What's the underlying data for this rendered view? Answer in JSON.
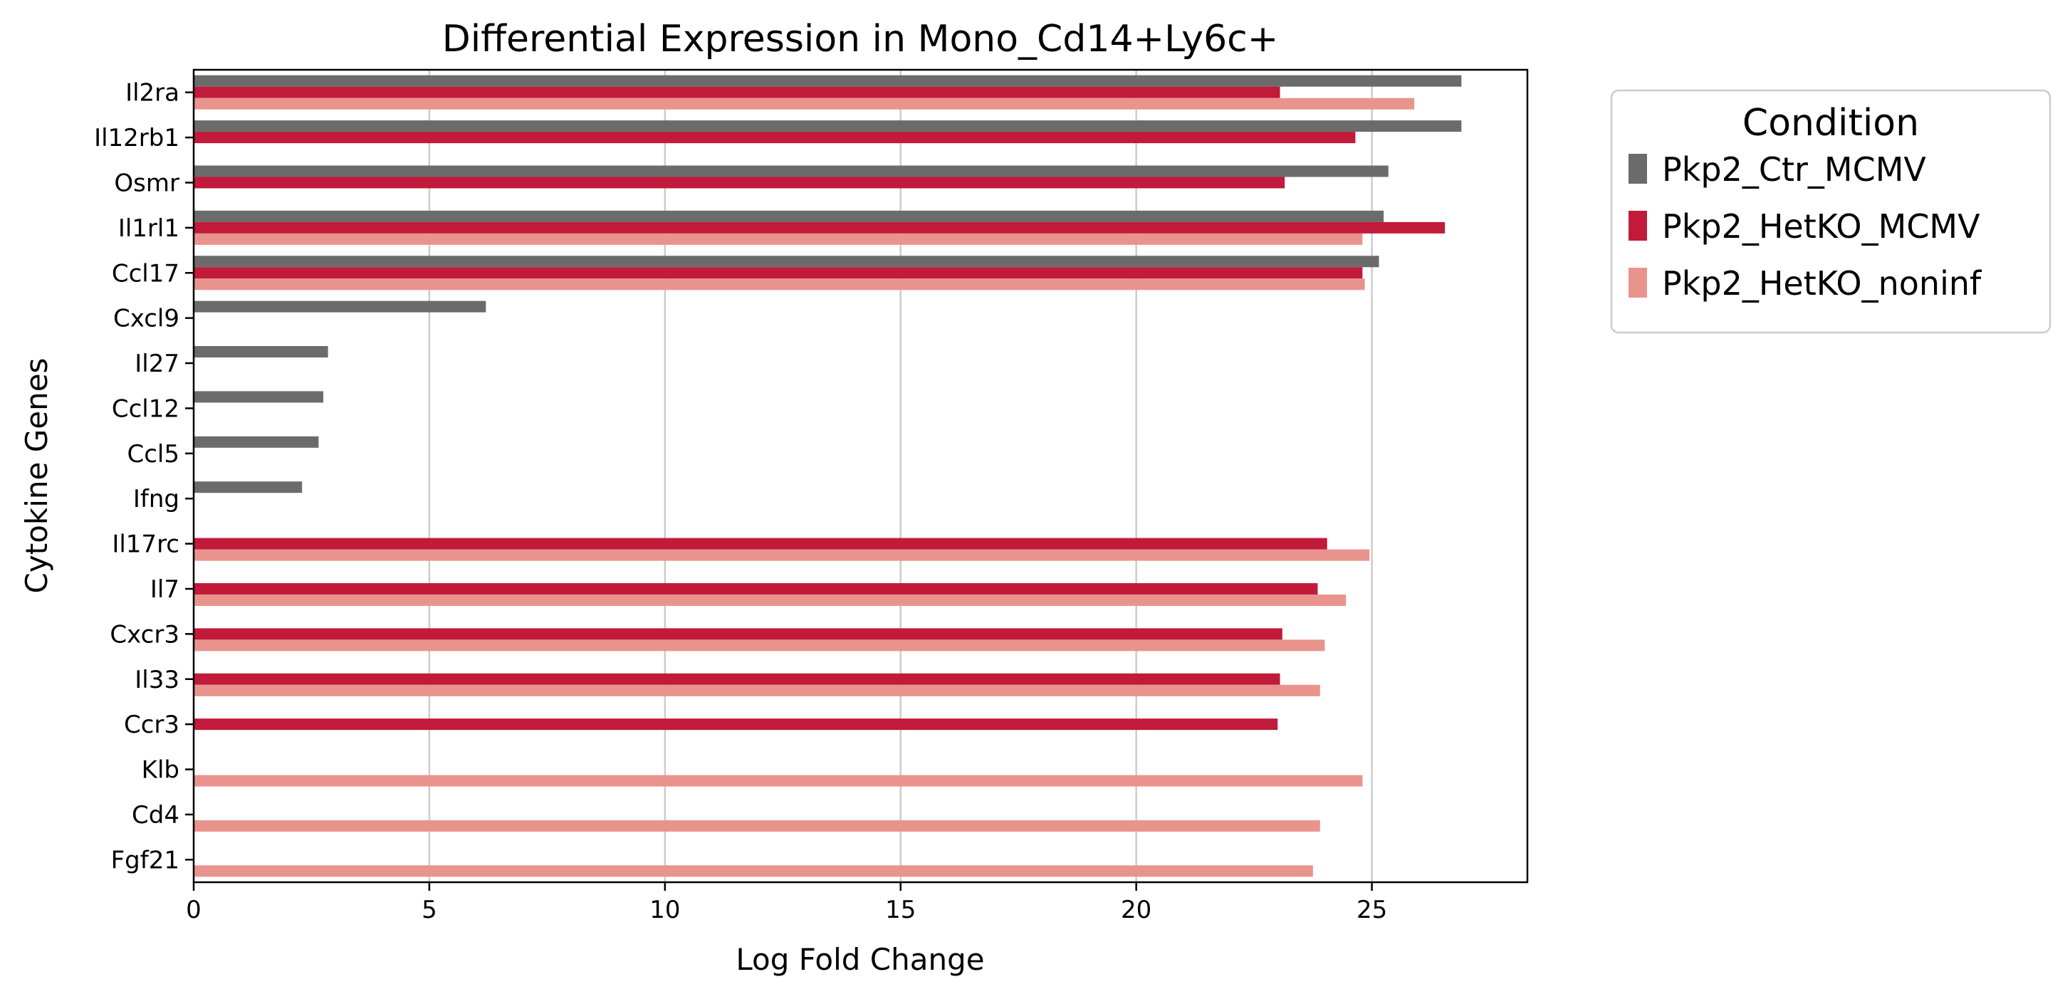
{
  "chart_data": {
    "type": "bar",
    "orientation": "horizontal",
    "title": "Differential Expression in Mono_Cd14+Ly6c+",
    "xlabel": "Log Fold Change",
    "ylabel": "Cytokine Genes",
    "xlim": [
      0,
      28.3
    ],
    "xticks": [
      0,
      5,
      10,
      15,
      20,
      25
    ],
    "grid": "x",
    "legend": {
      "title": "Condition",
      "placement": "outside-top-right"
    },
    "categories": [
      "Il2ra",
      "Il12rb1",
      "Osmr",
      "Il1rl1",
      "Ccl17",
      "Cxcl9",
      "Il27",
      "Ccl12",
      "Ccl5",
      "Ifng",
      "Il17rc",
      "Il7",
      "Cxcr3",
      "Il33",
      "Ccr3",
      "Klb",
      "Cd4",
      "Fgf21"
    ],
    "series": [
      {
        "name": "Pkp2_Ctr_MCMV",
        "color": "#6b6b6b",
        "values": [
          26.9,
          26.9,
          25.35,
          25.25,
          25.15,
          6.2,
          2.85,
          2.75,
          2.65,
          2.3,
          null,
          null,
          null,
          null,
          null,
          null,
          null,
          null
        ]
      },
      {
        "name": "Pkp2_HetKO_MCMV",
        "color": "#c11a3a",
        "values": [
          23.05,
          24.65,
          23.15,
          26.55,
          24.8,
          null,
          null,
          null,
          null,
          null,
          24.05,
          23.85,
          23.1,
          23.05,
          23.0,
          null,
          null,
          null
        ]
      },
      {
        "name": "Pkp2_HetKO_noninf",
        "color": "#e8948d",
        "values": [
          25.9,
          null,
          null,
          24.8,
          24.85,
          null,
          null,
          null,
          null,
          null,
          24.95,
          24.45,
          24.0,
          23.9,
          null,
          24.8,
          23.9,
          23.75
        ]
      }
    ]
  }
}
